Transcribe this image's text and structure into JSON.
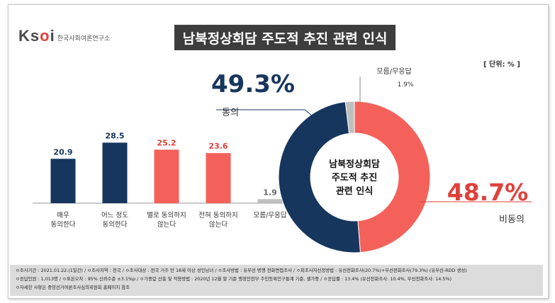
{
  "logo": {
    "mark_prefix": "K",
    "mark_mid": "s",
    "mark_o": "o",
    "mark_suffix": "i",
    "text": "한국사회여론연구소"
  },
  "title": "남북정상회담 주도적 추진 관련 인식",
  "unit": "[ 단위: % ]",
  "chart_data": [
    {
      "type": "bar",
      "categories": [
        [
          "매우",
          "동의한다"
        ],
        [
          "어느 정도",
          "동의한다"
        ],
        [
          "별로 동의하지",
          "않는다"
        ],
        [
          "전혀 동의하지",
          "않는다"
        ],
        [
          "모름/무응답"
        ]
      ],
      "values": [
        20.9,
        28.5,
        25.2,
        23.6,
        1.9
      ],
      "value_labels": [
        "20.9",
        "28.5",
        "25.2",
        "23.6",
        "1.9"
      ],
      "colors": [
        "#17365d",
        "#17365d",
        "#f4615a",
        "#f4615a",
        "#bfbfbf"
      ],
      "ylim": [
        0,
        30
      ]
    },
    {
      "type": "pie",
      "center_label": [
        "남북정상회담",
        "주도적 추진",
        "관련 인식"
      ],
      "slices": [
        {
          "name": "동의",
          "value": 49.3,
          "label": "49.3%",
          "color": "#17365d"
        },
        {
          "name": "비동의",
          "value": 48.7,
          "label": "48.7%",
          "color": "#f4615a"
        },
        {
          "name": "모름/무응답",
          "value": 1.9,
          "label": "1.9%",
          "color": "#bfbfbf"
        }
      ]
    }
  ],
  "footnotes": [
    "ㅇ조사기간 : 2021.01.22.(1일간) / ㅇ조사지역 : 전국 / ㅇ조사대상 : 전국 거주 만 18세 이상 성인남녀 / ㅇ조사방법 : 유무선 병행 전화면접조사 / ㅇ피조사자선정방법 : 유선전화조사(20.7%)+무선전화조사(79.3%) (유무선-RDD 생성)",
    "ㅇ응답인원 : 1,013명 / ㅇ표본오차 : 95% 신뢰수준 ±3.1%p / ㅇ가중값 산출 및 적용방법 : 2020년 12월 말 기준 행정안전부 주민등록인구통계 기준, 셀가중 / ㅇ응답률 : 13.4% (유선전화조사: 10.4%, 무선전화조사: 14.5%)",
    "ㅇ자세한 사항은 중앙선거여론조사심의위원회 홈페이지 참조"
  ]
}
